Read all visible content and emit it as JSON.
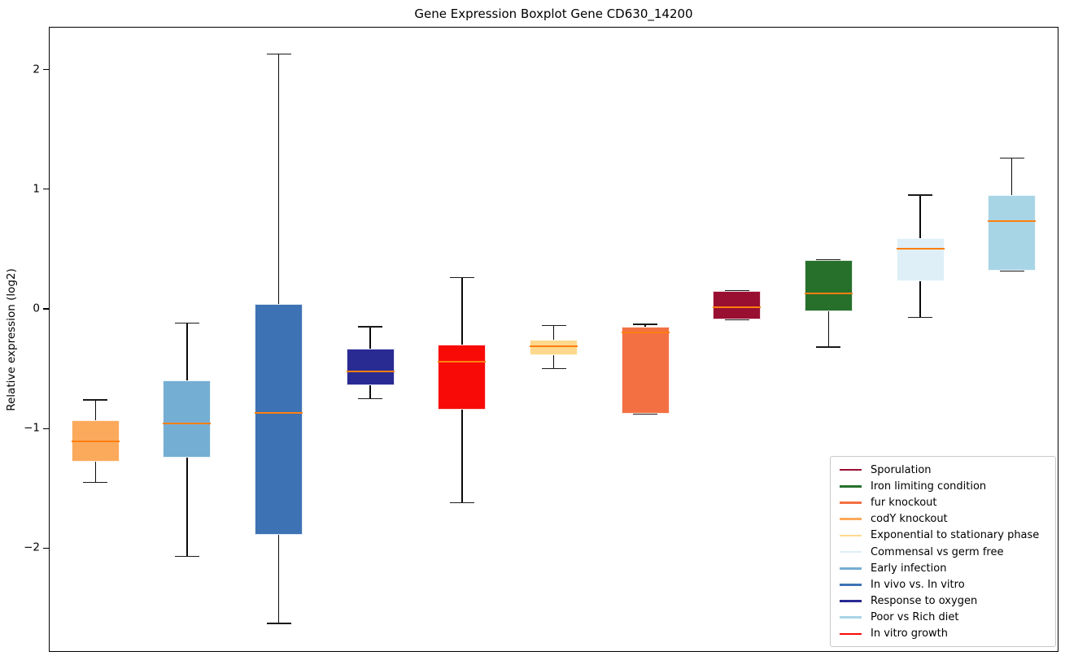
{
  "chart_data": {
    "type": "boxplot",
    "title": "Gene Expression Boxplot Gene CD630_14200",
    "ylabel": "Relative expression (log2)",
    "xlabel": "",
    "ylim": [
      -2.86,
      2.35
    ],
    "yticks": [
      2,
      1,
      0,
      -1,
      -2
    ],
    "xticks_visible": false,
    "grid": false,
    "median_color": "#ff7f0e",
    "whisker_color": "#000000",
    "legend_position": "lower right",
    "series": [
      {
        "name": "codY knockout",
        "color": "#fbaa5c",
        "whislo": -1.45,
        "q1": -1.28,
        "med": -1.11,
        "q3": -0.93,
        "whishi": -0.76
      },
      {
        "name": "Early infection",
        "color": "#75aed3",
        "whislo": -2.07,
        "q1": -1.24,
        "med": -0.96,
        "q3": -0.6,
        "whishi": -0.12
      },
      {
        "name": "In vivo vs. In vitro",
        "color": "#3d72b4",
        "whislo": -2.63,
        "q1": -1.89,
        "med": -0.87,
        "q3": 0.04,
        "whishi": 2.13
      },
      {
        "name": "Response to oxygen",
        "color": "#2a2a93",
        "whislo": -0.75,
        "q1": -0.64,
        "med": -0.52,
        "q3": -0.33,
        "whishi": -0.15
      },
      {
        "name": "In vitro growth",
        "color": "#f80b07",
        "whislo": -1.62,
        "q1": -0.84,
        "med": -0.44,
        "q3": -0.3,
        "whishi": 0.26
      },
      {
        "name": "Exponential to stationary phase",
        "color": "#fcd98e",
        "whislo": -0.5,
        "q1": -0.39,
        "med": -0.31,
        "q3": -0.26,
        "whishi": -0.14
      },
      {
        "name": "fur knockout",
        "color": "#f37043",
        "whislo": -0.88,
        "q1": -0.88,
        "med": -0.2,
        "q3": -0.15,
        "whishi": -0.13
      },
      {
        "name": "Sporulation",
        "color": "#990f32",
        "whislo": -0.09,
        "q1": -0.09,
        "med": 0.01,
        "q3": 0.15,
        "whishi": 0.15
      },
      {
        "name": "Iron limiting condition",
        "color": "#27702b",
        "whislo": -0.32,
        "q1": -0.02,
        "med": 0.13,
        "q3": 0.41,
        "whishi": 0.41
      },
      {
        "name": "Commensal vs germ free",
        "color": "#deeff7",
        "whislo": -0.07,
        "q1": 0.23,
        "med": 0.5,
        "q3": 0.59,
        "whishi": 0.95
      },
      {
        "name": "Poor vs Rich diet",
        "color": "#a8d5e6",
        "whislo": 0.32,
        "q1": 0.32,
        "med": 0.73,
        "q3": 0.95,
        "whishi": 1.26
      }
    ],
    "legend": [
      {
        "label": "Sporulation",
        "color": "#990f32"
      },
      {
        "label": "Iron limiting condition",
        "color": "#27702b"
      },
      {
        "label": "fur knockout",
        "color": "#f37043"
      },
      {
        "label": "codY knockout",
        "color": "#fbaa5c"
      },
      {
        "label": "Exponential to stationary phase",
        "color": "#fcd98e"
      },
      {
        "label": "Commensal vs germ free",
        "color": "#deeff7"
      },
      {
        "label": "Early infection",
        "color": "#75aed3"
      },
      {
        "label": "In vivo vs. In vitro",
        "color": "#3d72b4"
      },
      {
        "label": "Response to oxygen",
        "color": "#2a2a93"
      },
      {
        "label": "Poor vs Rich diet",
        "color": "#a8d5e6"
      },
      {
        "label": "In vitro growth",
        "color": "#f80b07"
      }
    ]
  }
}
